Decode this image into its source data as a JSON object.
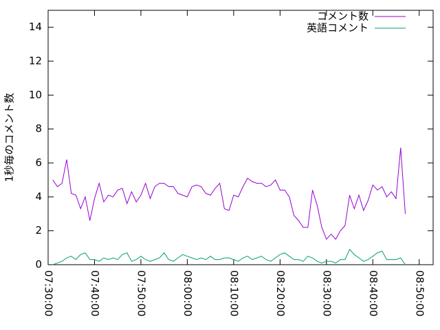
{
  "chart_data": {
    "type": "line",
    "y_label": "1秒毎のコメント数",
    "x": [
      "07:31:00",
      "07:32:00",
      "07:33:00",
      "07:34:00",
      "07:35:00",
      "07:36:00",
      "07:37:00",
      "07:38:00",
      "07:39:00",
      "07:40:00",
      "07:41:00",
      "07:42:00",
      "07:43:00",
      "07:44:00",
      "07:45:00",
      "07:46:00",
      "07:47:00",
      "07:48:00",
      "07:49:00",
      "07:50:00",
      "07:51:00",
      "07:52:00",
      "07:53:00",
      "07:54:00",
      "07:55:00",
      "07:56:00",
      "07:57:00",
      "07:58:00",
      "07:59:00",
      "08:00:00",
      "08:01:00",
      "08:02:00",
      "08:03:00",
      "08:04:00",
      "08:05:00",
      "08:06:00",
      "08:07:00",
      "08:08:00",
      "08:09:00",
      "08:10:00",
      "08:11:00",
      "08:12:00",
      "08:13:00",
      "08:14:00",
      "08:15:00",
      "08:16:00",
      "08:17:00",
      "08:18:00",
      "08:19:00",
      "08:20:00",
      "08:21:00",
      "08:22:00",
      "08:23:00",
      "08:24:00",
      "08:25:00",
      "08:26:00",
      "08:27:00",
      "08:28:00",
      "08:29:00",
      "08:30:00",
      "08:31:00",
      "08:32:00",
      "08:33:00",
      "08:34:00",
      "08:35:00",
      "08:36:00",
      "08:37:00",
      "08:38:00",
      "08:39:00",
      "08:40:00",
      "08:41:00",
      "08:42:00",
      "08:43:00",
      "08:44:00",
      "08:45:00",
      "08:46:00",
      "08:47:00"
    ],
    "series": [
      {
        "name": "コメント数",
        "color": "#9400d3",
        "values": [
          5.0,
          4.6,
          4.8,
          6.2,
          4.2,
          4.1,
          3.3,
          4.0,
          2.6,
          3.9,
          4.8,
          3.7,
          4.1,
          4.0,
          4.4,
          4.5,
          3.6,
          4.3,
          3.7,
          4.1,
          4.8,
          3.9,
          4.6,
          4.8,
          4.8,
          4.6,
          4.6,
          4.2,
          4.1,
          4.0,
          4.6,
          4.7,
          4.6,
          4.2,
          4.1,
          4.5,
          4.8,
          3.3,
          3.2,
          4.1,
          4.0,
          4.6,
          5.1,
          4.9,
          4.8,
          4.8,
          4.6,
          4.7,
          5.0,
          4.4,
          4.4,
          4.0,
          2.9,
          2.6,
          2.2,
          2.2,
          4.4,
          3.5,
          2.2,
          1.5,
          1.8,
          1.5,
          2.0,
          2.3,
          4.1,
          3.3,
          4.1,
          3.2,
          3.8,
          4.7,
          4.4,
          4.6,
          4.0,
          4.3,
          3.9,
          6.9,
          3.0
        ]
      },
      {
        "name": "英語コメント",
        "color": "#009e73",
        "values": [
          0.0,
          0.1,
          0.2,
          0.4,
          0.5,
          0.3,
          0.6,
          0.7,
          0.3,
          0.3,
          0.2,
          0.4,
          0.3,
          0.4,
          0.3,
          0.6,
          0.7,
          0.2,
          0.3,
          0.5,
          0.3,
          0.2,
          0.3,
          0.4,
          0.7,
          0.3,
          0.2,
          0.4,
          0.6,
          0.5,
          0.4,
          0.3,
          0.4,
          0.3,
          0.5,
          0.3,
          0.3,
          0.4,
          0.4,
          0.3,
          0.2,
          0.4,
          0.5,
          0.3,
          0.4,
          0.5,
          0.3,
          0.2,
          0.4,
          0.6,
          0.7,
          0.5,
          0.3,
          0.3,
          0.2,
          0.5,
          0.4,
          0.2,
          0.1,
          0.2,
          0.2,
          0.1,
          0.3,
          0.3,
          0.9,
          0.6,
          0.4,
          0.2,
          0.3,
          0.5,
          0.7,
          0.8,
          0.3,
          0.3,
          0.3,
          0.4,
          0.0
        ]
      }
    ],
    "xlim": [
      "07:30:00",
      "08:53:00"
    ],
    "xticks": [
      "07:30:00",
      "07:40:00",
      "07:50:00",
      "08:00:00",
      "08:10:00",
      "08:20:00",
      "08:30:00",
      "08:40:00",
      "08:50:00"
    ],
    "ylim": [
      0,
      15
    ],
    "yticks": [
      0,
      2,
      4,
      6,
      8,
      10,
      12,
      14
    ],
    "legend": "top-right",
    "grid": false
  }
}
